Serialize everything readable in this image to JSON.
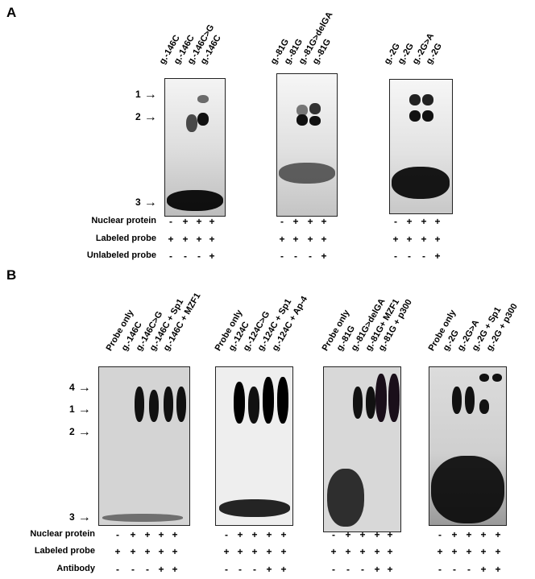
{
  "panel_a": {
    "letter": "A",
    "gels": [
      {
        "lanes": [
          "g.-146C",
          "g.-146C",
          "g.-146C>G",
          "g.-146C"
        ],
        "nuclear_protein": [
          "-",
          "+",
          "+",
          "+"
        ],
        "labeled_probe": [
          "+",
          "+",
          "+",
          "+"
        ],
        "unlabeled_probe": [
          "-",
          "-",
          "-",
          "+"
        ]
      },
      {
        "lanes": [
          "g.-81G",
          "g.-81G",
          "g.-81G>delGA",
          "g.-81G"
        ],
        "nuclear_protein": [
          "-",
          "+",
          "+",
          "+"
        ],
        "labeled_probe": [
          "+",
          "+",
          "+",
          "+"
        ],
        "unlabeled_probe": [
          "-",
          "-",
          "-",
          "+"
        ]
      },
      {
        "lanes": [
          "g.-2G",
          "g.-2G",
          "g.-2G>A",
          "g.-2G"
        ],
        "nuclear_protein": [
          "-",
          "+",
          "+",
          "+"
        ],
        "labeled_probe": [
          "+",
          "+",
          "+",
          "+"
        ],
        "unlabeled_probe": [
          "-",
          "-",
          "-",
          "+"
        ]
      }
    ],
    "arrows": [
      "1",
      "2",
      "3"
    ],
    "row_labels": {
      "nuclear_protein": "Nuclear protein",
      "labeled_probe": "Labeled probe",
      "unlabeled_probe": "Unlabeled probe"
    }
  },
  "panel_b": {
    "letter": "B",
    "gels": [
      {
        "lanes": [
          "Probe only",
          "g.-146C",
          "g.-146C>G",
          "g.-146C + Sp1",
          "g.-146C + MZF1"
        ],
        "nuclear_protein": [
          "-",
          "+",
          "+",
          "+",
          "+"
        ],
        "labeled_probe": [
          "+",
          "+",
          "+",
          "+",
          "+"
        ],
        "antibody": [
          "-",
          "-",
          "-",
          "+",
          "+"
        ]
      },
      {
        "lanes": [
          "Probe only",
          "g.-124C",
          "g.-124C>G",
          "g.-124C + Sp1",
          "g.-124C + Ap-4"
        ],
        "nuclear_protein": [
          "-",
          "+",
          "+",
          "+",
          "+"
        ],
        "labeled_probe": [
          "+",
          "+",
          "+",
          "+",
          "+"
        ],
        "antibody": [
          "-",
          "-",
          "-",
          "+",
          "+"
        ]
      },
      {
        "lanes": [
          "Probe only",
          "g.-81G",
          "g.-81G>delGA",
          "g.-81G+ MZF1",
          "g.-81G + p300"
        ],
        "nuclear_protein": [
          "-",
          "+",
          "+",
          "+",
          "+"
        ],
        "labeled_probe": [
          "+",
          "+",
          "+",
          "+",
          "+"
        ],
        "antibody": [
          "-",
          "-",
          "-",
          "+",
          "+"
        ]
      },
      {
        "lanes": [
          "Probe only",
          "g.-2G",
          "g.-2G>A",
          "g.-2G + Sp1",
          "g.-2G + p300"
        ],
        "nuclear_protein": [
          "-",
          "+",
          "+",
          "+",
          "+"
        ],
        "labeled_probe": [
          "+",
          "+",
          "+",
          "+",
          "+"
        ],
        "antibody": [
          "-",
          "-",
          "-",
          "+",
          "+"
        ]
      }
    ],
    "arrows": [
      "4",
      "1",
      "2",
      "3"
    ],
    "row_labels": {
      "nuclear_protein": "Nuclear protein",
      "labeled_probe": "Labeled probe",
      "antibody": "Antibody"
    }
  },
  "colors": {
    "ink": "#000000",
    "gel_light": "#e8e8e8",
    "gel_dark": "#cfcfcf",
    "band": "#111111"
  }
}
